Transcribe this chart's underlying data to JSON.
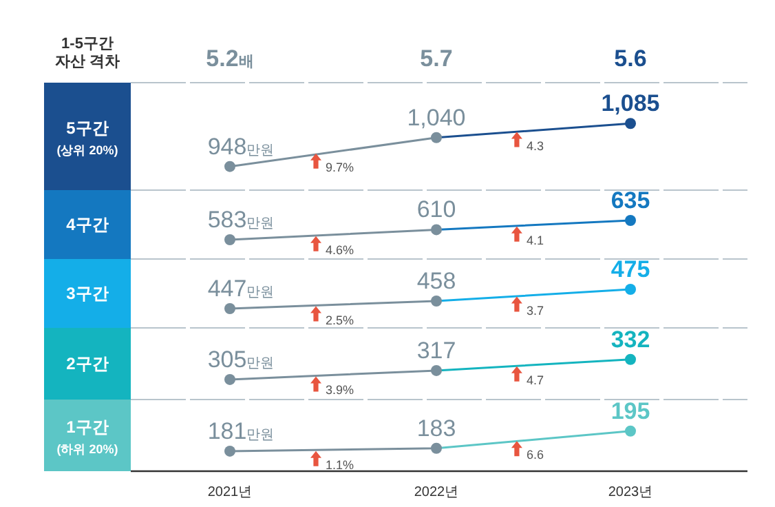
{
  "chart_data": [
    {
      "type": "other",
      "title": "1-5구간\n자산 격차",
      "annotations": [
        "5.2배",
        "5.7",
        "5.6"
      ]
    },
    {
      "type": "line",
      "title": "5구간",
      "subtitle": "(상위 20%)",
      "categories": [
        null,
        null,
        null
      ],
      "marker": "circle",
      "series": [
        {
          "color": "#1b4f8f",
          "values": [
            948,
            1040,
            1085
          ],
          "value_labels": [
            "948만원",
            "1,040",
            "1,085"
          ]
        }
      ],
      "annotations": [
        "9.7%",
        "4.3"
      ]
    },
    {
      "type": "line",
      "title": "4구간",
      "categories": [
        null,
        null,
        null
      ],
      "marker": "circle",
      "series": [
        {
          "color": "#1478c0",
          "values": [
            583,
            610,
            635
          ],
          "value_labels": [
            "583만원",
            "610",
            "635"
          ]
        }
      ],
      "annotations": [
        "4.6%",
        "4.1"
      ]
    },
    {
      "type": "line",
      "title": "3구간",
      "categories": [
        null,
        null,
        null
      ],
      "marker": "circle",
      "series": [
        {
          "color": "#14aee8",
          "values": [
            447,
            458,
            475
          ],
          "value_labels": [
            "447만원",
            "458",
            "475"
          ]
        }
      ],
      "annotations": [
        "2.5%",
        "3.7"
      ]
    },
    {
      "type": "line",
      "title": "2구간",
      "categories": [
        null,
        null,
        null
      ],
      "marker": "circle",
      "series": [
        {
          "color": "#14b4bf",
          "values": [
            305,
            317,
            332
          ],
          "value_labels": [
            "305만원",
            "317",
            "332"
          ]
        }
      ],
      "annotations": [
        "3.9%",
        "4.7"
      ]
    },
    {
      "type": "line",
      "title": "1구간",
      "subtitle": "(하위 20%)",
      "categories": [
        "2021년",
        "2022년",
        "2023년"
      ],
      "marker": "circle",
      "series": [
        {
          "color": "#5cc6c6",
          "values": [
            181,
            183,
            195
          ],
          "value_labels": [
            "181만원",
            "183",
            "195"
          ]
        }
      ],
      "annotations": [
        "1.1%",
        "6.6"
      ]
    }
  ]
}
